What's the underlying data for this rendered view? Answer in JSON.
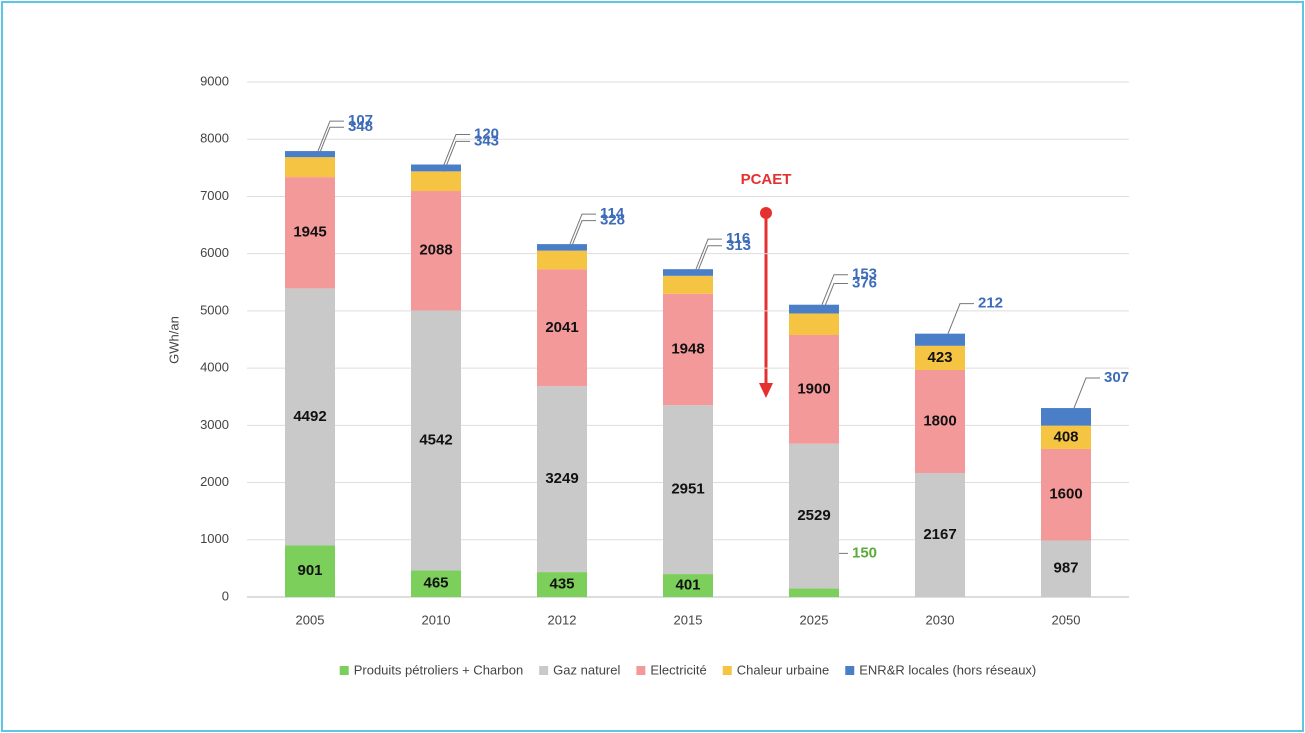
{
  "chart_data": {
    "type": "stacked_bar",
    "y_label": "GWh/an",
    "annotation": "PCAET",
    "categories": [
      "2005",
      "2010",
      "2012",
      "2015",
      "2025",
      "2030",
      "2050"
    ],
    "series": [
      {
        "name": "Produits pétroliers + Charbon",
        "color": "#7ccf5b",
        "values": [
          901,
          465,
          435,
          401,
          150,
          null,
          null
        ]
      },
      {
        "name": "Gaz naturel",
        "color": "#c9c9c9",
        "values": [
          4492,
          4542,
          3249,
          2951,
          2529,
          2167,
          987
        ]
      },
      {
        "name": "Electricité",
        "color": "#f4999a",
        "values": [
          1945,
          2088,
          2041,
          1948,
          1900,
          1800,
          1600
        ]
      },
      {
        "name": "Chaleur urbaine",
        "color": "#f6c443",
        "values": [
          348,
          343,
          328,
          313,
          376,
          423,
          408
        ]
      },
      {
        "name": "ENR&R locales (hors réseaux)",
        "color": "#4a7ec7",
        "values": [
          107,
          120,
          114,
          116,
          153,
          212,
          307
        ]
      }
    ],
    "ylim": [
      0,
      9000
    ],
    "yticks": [
      0,
      1000,
      2000,
      3000,
      4000,
      5000,
      6000,
      7000,
      8000,
      9000
    ],
    "grid": true
  }
}
